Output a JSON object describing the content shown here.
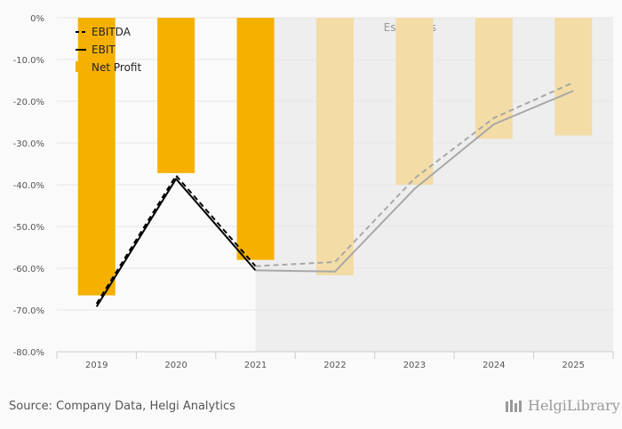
{
  "chart_data": {
    "type": "bar",
    "categories": [
      "2019",
      "2020",
      "2021",
      "2022",
      "2023",
      "2024",
      "2025"
    ],
    "estimate_from": "2021",
    "estimate_label": "Estimates",
    "ylim": [
      -80,
      0
    ],
    "yticks": [
      0,
      -10,
      -20,
      -30,
      -40,
      -50,
      -60,
      -70,
      -80
    ],
    "ytick_labels": [
      "0%",
      "-10.0%",
      "-20.0%",
      "-30.0%",
      "-40.0%",
      "-50.0%",
      "-60.0%",
      "-70.0%",
      "-80.0%"
    ],
    "series": [
      {
        "name": "Net Profit",
        "kind": "bar",
        "values": [
          -66.5,
          -37.2,
          -58.0,
          -61.7,
          -40.0,
          -29.0,
          -28.2
        ]
      },
      {
        "name": "EBITDA",
        "kind": "line",
        "style": "dashed",
        "values": [
          -68.5,
          -37.8,
          -59.5,
          -58.5,
          -38.5,
          -24.0,
          -15.5
        ]
      },
      {
        "name": "EBIT",
        "kind": "line",
        "style": "solid",
        "values": [
          -69.2,
          -38.6,
          -60.5,
          -60.8,
          -41.0,
          -25.5,
          -17.5
        ]
      }
    ],
    "colors": {
      "bar": "#F5B000",
      "bar_estimate": "#F3DCA6",
      "line": "#000000",
      "line_estimate": "#A8A8A8",
      "estimate_bg": "#EEEEEE"
    }
  },
  "legend": {
    "items": [
      "EBITDA",
      "EBIT",
      "Net Profit"
    ]
  },
  "footer": {
    "source": "Source: Company Data, Helgi Analytics",
    "brand": "HelgiLibrary"
  }
}
